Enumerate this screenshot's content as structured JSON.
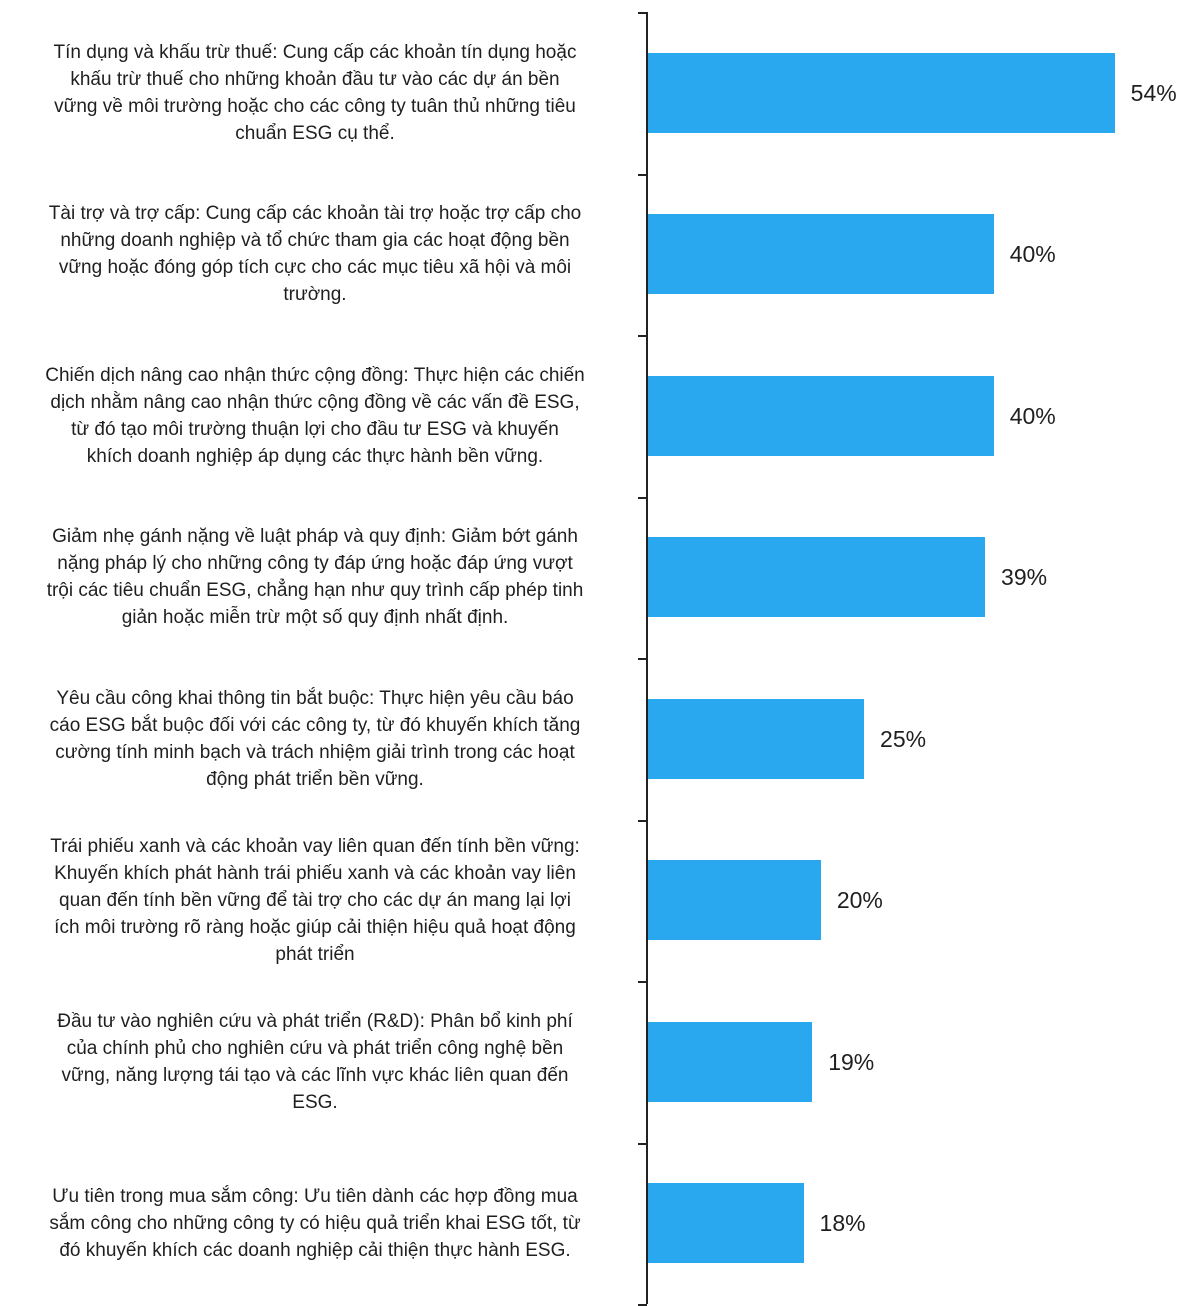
{
  "chart_data": {
    "type": "bar",
    "orientation": "horizontal",
    "categories": [
      "Tín dụng và khấu trừ thuế: Cung cấp các khoản tín dụng hoặc khấu trừ thuế cho những khoản đầu tư vào các dự án bền vững về môi trường hoặc cho các công ty tuân thủ những tiêu chuẩn ESG cụ thể.",
      "Tài trợ và trợ cấp: Cung cấp các khoản tài trợ hoặc trợ cấp cho những doanh nghiệp và tổ chức tham gia các hoạt động bền vững hoặc đóng góp tích cực cho các mục tiêu xã hội và môi trường.",
      "Chiến dịch nâng cao nhận thức cộng đồng: Thực hiện các chiến dịch nhằm nâng cao nhận thức cộng đồng về các vấn đề ESG, từ đó tạo môi trường thuận lợi cho đầu tư ESG và khuyến khích doanh nghiệp áp dụng các thực hành bền vững.",
      "Giảm nhẹ gánh nặng về luật pháp và quy định: Giảm bớt gánh nặng pháp lý cho những công ty đáp ứng hoặc đáp ứng vượt trội các tiêu chuẩn ESG, chẳng hạn như quy trình cấp phép tinh giản hoặc miễn trừ một số quy định nhất định.",
      "Yêu cầu công khai thông tin bắt buộc: Thực hiện yêu cầu báo cáo ESG bắt buộc đối với các công ty, từ đó khuyến khích tăng cường tính minh bạch và trách nhiệm giải trình trong các hoạt động phát triển bền vững.",
      "Trái phiếu xanh và các khoản vay liên quan đến tính bền vững: Khuyến khích phát hành trái phiếu xanh và các khoản vay liên quan đến tính bền vững để tài trợ cho các dự án mang lại lợi ích môi trường rõ ràng hoặc giúp cải thiện hiệu quả hoạt động phát triển",
      "Đầu tư vào nghiên cứu và phát triển (R&D): Phân bổ kinh phí của chính phủ cho nghiên cứu và phát triển công nghệ bền vững, năng lượng tái tạo và các lĩnh vực khác liên quan đến ESG.",
      "Ưu tiên trong mua sắm công: Ưu tiên dành các hợp đồng mua sắm công cho những công ty có hiệu quả triển khai ESG tốt, từ đó khuyến khích các doanh nghiệp cải thiện thực hành ESG."
    ],
    "label_lines": [
      [
        "Tín dụng và khấu trừ thuế: Cung cấp các khoản tín dụng hoặc",
        "khấu trừ thuế cho những khoản đầu tư vào các dự án bền",
        "vững về môi trường hoặc cho các công ty tuân thủ những tiêu",
        "chuẩn ESG cụ thể."
      ],
      [
        "Tài trợ và trợ cấp: Cung cấp các khoản tài trợ hoặc trợ cấp cho",
        "những doanh nghiệp và tổ chức tham gia các hoạt động bền",
        "vững hoặc đóng góp tích cực cho các mục tiêu xã hội và môi",
        "trường."
      ],
      [
        "Chiến dịch nâng cao nhận thức cộng đồng: Thực hiện các chiến",
        "dịch nhằm nâng cao nhận thức cộng đồng về các vấn đề ESG,",
        "từ đó tạo môi trường thuận lợi cho đầu tư ESG và khuyến",
        "khích doanh nghiệp áp dụng các thực hành bền vững."
      ],
      [
        "Giảm nhẹ gánh nặng về luật pháp và quy định: Giảm bớt gánh",
        "nặng pháp lý cho những công ty đáp ứng hoặc đáp ứng vượt",
        "trội các tiêu chuẩn ESG, chẳng hạn như quy trình cấp phép tinh",
        "giản hoặc miễn trừ một số quy định nhất định."
      ],
      [
        "Yêu cầu công khai thông tin bắt buộc: Thực hiện yêu cầu báo",
        "cáo ESG bắt buộc đối với các công ty, từ đó khuyến khích tăng",
        "cường tính minh bạch và trách nhiệm giải trình trong các hoạt",
        "động phát triển bền vững."
      ],
      [
        "Trái phiếu xanh và các khoản vay liên quan đến tính bền vững:",
        "Khuyến khích phát hành trái phiếu xanh và các khoản vay liên",
        "quan đến tính bền vững để tài trợ cho các dự án mang lại lợi",
        "ích môi trường rõ ràng hoặc giúp cải thiện hiệu quả hoạt động",
        "phát triển"
      ],
      [
        "Đầu tư vào nghiên cứu và phát triển (R&D): Phân bổ kinh phí",
        "của chính phủ cho nghiên cứu và phát triển công nghệ bền",
        "vững, năng lượng tái tạo và các lĩnh vực khác liên quan đến",
        "ESG."
      ],
      [
        "Ưu tiên trong mua sắm công: Ưu tiên dành các hợp đồng mua",
        "sắm công cho những công ty có hiệu quả triển khai ESG tốt, từ",
        "đó khuyến khích các doanh nghiệp cải thiện thực hành ESG."
      ]
    ],
    "values": [
      54,
      40,
      40,
      39,
      25,
      20,
      19,
      18
    ],
    "value_labels": [
      "54%",
      "40%",
      "40%",
      "39%",
      "25%",
      "20%",
      "19%",
      "18%"
    ],
    "unit": "%",
    "xlim": [
      0,
      54.5
    ],
    "title": "",
    "xlabel": "",
    "ylabel": "",
    "grid": false,
    "legend": "none",
    "bar_color": "#29A8EF",
    "axis_color": "#222222"
  }
}
